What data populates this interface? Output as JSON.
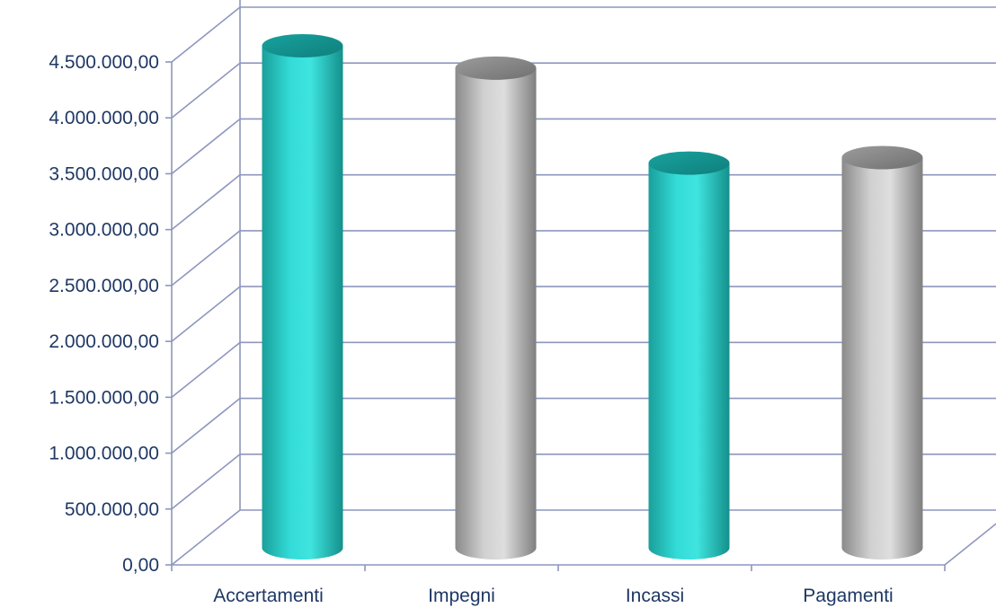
{
  "chart_data": {
    "type": "bar",
    "style": "3d-cylinder",
    "title": "",
    "xlabel": "",
    "ylabel": "",
    "categories": [
      "Accertamenti",
      "Impegni",
      "Incassi",
      "Pagamenti"
    ],
    "values": [
      4500000,
      4300000,
      3450000,
      3500000
    ],
    "ylim": [
      0,
      4500000
    ],
    "yticks": [
      "0,00",
      "500.000,00",
      "1.000.000,00",
      "1.500.000,00",
      "2.000.000,00",
      "2.500.000,00",
      "3.000.000,00",
      "3.500.000,00",
      "4.000.000,00",
      "4.500.000,00"
    ],
    "grid": true,
    "legend": "none",
    "colors": {
      "teal": "#2ad6d2",
      "gray": "#bdbdbd",
      "grid": "#8e96bd",
      "axis_text": "#1f3864"
    },
    "bar_colors": [
      "teal",
      "gray",
      "teal",
      "gray"
    ]
  }
}
